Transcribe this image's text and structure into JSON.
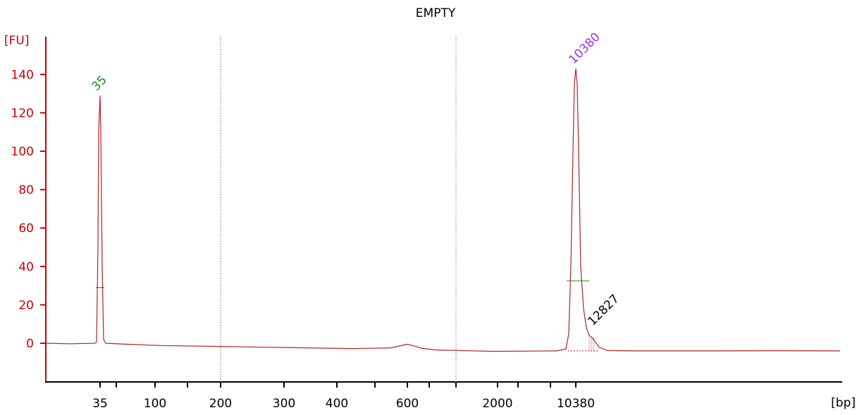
{
  "chart_data": {
    "type": "line",
    "title": "EMPTY",
    "ylabel": "[FU]",
    "xlabel": "[bp]",
    "ylim": [
      -20,
      150
    ],
    "yticks": [
      0,
      20,
      40,
      60,
      80,
      100,
      120,
      140
    ],
    "xtick_labels": [
      "35",
      "100",
      "200",
      "300",
      "400",
      "600",
      "2000",
      "10380"
    ],
    "peaks": [
      {
        "label": "35",
        "x_bp": "35",
        "y": 129,
        "label_color": "#228B22"
      },
      {
        "label": "10380",
        "x_bp": "10380",
        "y": 143,
        "label_color": "#9b30ff"
      },
      {
        "label": "12827",
        "x_bp": "12827",
        "y": 3,
        "label_color": "#000000"
      }
    ],
    "line_color": "#b22222",
    "axis_color": "#cc0000",
    "gridline_color": "#6a6acd"
  }
}
